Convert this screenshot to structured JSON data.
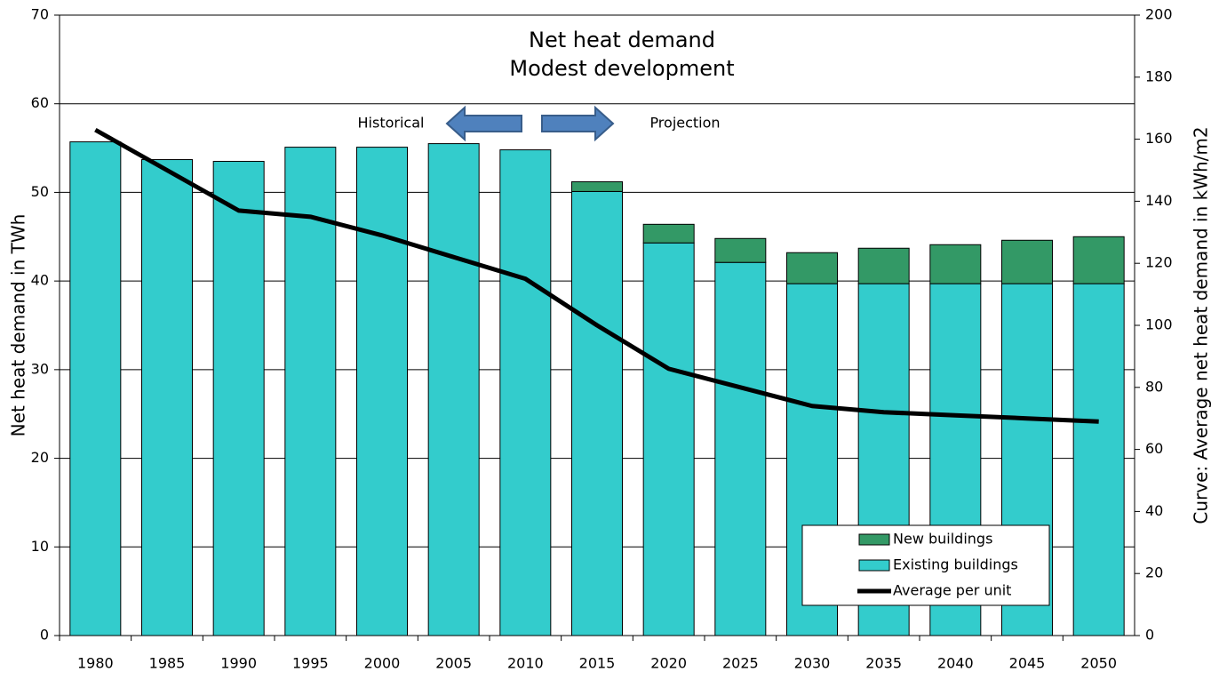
{
  "chart_data": {
    "type": "bar",
    "title": "Net heat demand",
    "subtitle": "Modest development",
    "y_label": "Net heat demand in TWh",
    "y2_label": "Curve: Average net heat demand in kWh/m2",
    "annotations": [
      "Historical",
      "Projection"
    ],
    "categories": [
      "1980",
      "1985",
      "1990",
      "1995",
      "2000",
      "2005",
      "2010",
      "2015",
      "2020",
      "2025",
      "2030",
      "2035",
      "2040",
      "2045",
      "2050"
    ],
    "stacked": true,
    "series": [
      {
        "name": "Existing buildings",
        "type": "bar",
        "color": "#33cccc",
        "values": [
          55.7,
          53.7,
          53.5,
          55.1,
          55.1,
          55.5,
          54.8,
          50.1,
          44.3,
          42.1,
          39.7,
          39.7,
          39.7,
          39.7,
          39.7
        ]
      },
      {
        "name": "New buildings",
        "type": "bar",
        "color": "#339966",
        "values": [
          0,
          0,
          0,
          0,
          0,
          0,
          0,
          1.1,
          2.1,
          2.7,
          3.5,
          4.0,
          4.4,
          4.9,
          5.3
        ]
      },
      {
        "name": "Average per unit",
        "type": "line",
        "axis": "y2",
        "color": "#000000",
        "values": [
          163,
          150,
          137,
          135,
          129,
          122,
          115,
          100,
          86,
          80,
          74,
          72,
          71,
          70,
          69
        ]
      }
    ],
    "ylim": [
      0,
      70
    ],
    "yticks": [
      0,
      10,
      20,
      30,
      40,
      50,
      60,
      70
    ],
    "y2lim": [
      0,
      200
    ],
    "y2ticks": [
      0,
      20,
      40,
      60,
      80,
      100,
      120,
      140,
      160,
      180,
      200
    ],
    "grid": true,
    "legend": "lower right"
  }
}
